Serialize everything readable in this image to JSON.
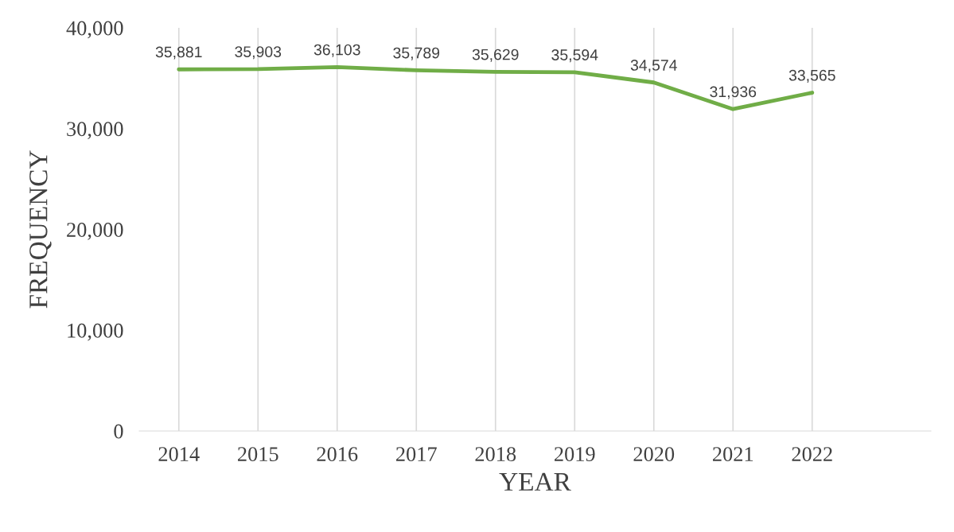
{
  "chart_data": {
    "type": "line",
    "xlabel": "YEAR",
    "ylabel": "FREQUENCY",
    "categories": [
      "2014",
      "2015",
      "2016",
      "2017",
      "2018",
      "2019",
      "2020",
      "2021",
      "2022",
      null
    ],
    "series": [
      {
        "color": "#70ad47",
        "values": [
          35881,
          35903,
          36103,
          35789,
          35629,
          35594,
          34574,
          31936,
          33565,
          null
        ],
        "value_labels": [
          "35,881",
          "35,903",
          "36,103",
          "35,789",
          "35,629",
          "35,594",
          "34,574",
          "31,936",
          "33,565",
          null
        ]
      }
    ],
    "ylim": [
      0,
      40000
    ],
    "yticks": [
      0,
      {
        "value": 10000,
        "label": "10,000"
      },
      {
        "value": 20000,
        "label": "20,000"
      },
      {
        "value": 30000,
        "label": "30,000"
      },
      {
        "value": 40000,
        "label": "40,000"
      }
    ],
    "grid": "x",
    "marker": "none",
    "line_style": "solid"
  }
}
